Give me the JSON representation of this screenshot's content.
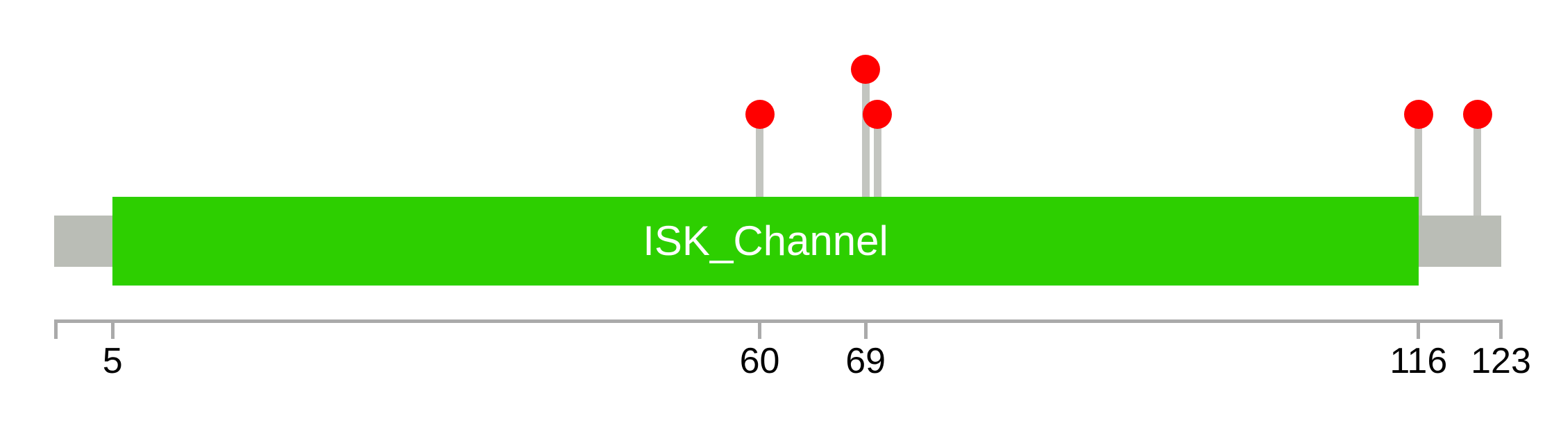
{
  "chart_data": {
    "type": "lollipop",
    "title": "",
    "protein": {
      "axis_range": [
        0,
        123
      ],
      "length": 123
    },
    "backbone": {
      "start": 0,
      "end": 123,
      "color": "#babdb6"
    },
    "domains": [
      {
        "label": "ISK_Channel",
        "start": 5,
        "end": 116,
        "fill": "#2dcf00",
        "label_color": "#ffffff"
      }
    ],
    "mutations": [
      {
        "position": 60,
        "level": 1,
        "color": "#ff0000"
      },
      {
        "position": 69,
        "level": 2,
        "color": "#ff0000"
      },
      {
        "position": 70,
        "level": 1,
        "color": "#ff0000"
      },
      {
        "position": 116,
        "level": 1,
        "color": "#ff0000"
      },
      {
        "position": 121,
        "level": 1,
        "color": "#ff0000"
      }
    ],
    "stem_color": "#c3c5c0",
    "axis": {
      "color": "#aaaaaa",
      "tick_label_color": "#000000",
      "ticks": [
        {
          "pos": 0,
          "label": ""
        },
        {
          "pos": 5,
          "label": "5"
        },
        {
          "pos": 60,
          "label": "60"
        },
        {
          "pos": 69,
          "label": "69"
        },
        {
          "pos": 116,
          "label": "116"
        },
        {
          "pos": 123,
          "label": "123"
        }
      ]
    },
    "background": "#ffffff"
  }
}
